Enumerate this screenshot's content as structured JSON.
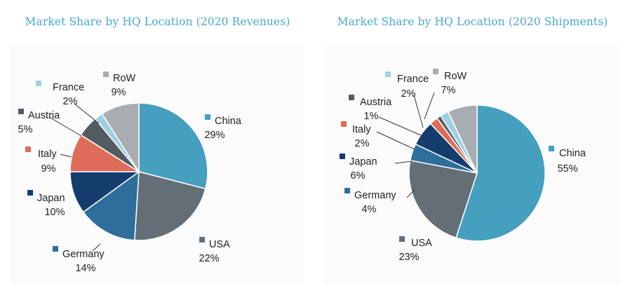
{
  "chart_data": [
    {
      "type": "pie",
      "title": "Market Share by HQ Location (2020 Revenues)",
      "unit": "%",
      "slices": [
        {
          "name": "China",
          "value": 29,
          "label": "29%",
          "color": "#459fbe"
        },
        {
          "name": "USA",
          "value": 22,
          "label": "22%",
          "color": "#646e76"
        },
        {
          "name": "Germany",
          "value": 14,
          "label": "14%",
          "color": "#2e6e9b"
        },
        {
          "name": "Japan",
          "value": 10,
          "label": "10%",
          "color": "#143d6e"
        },
        {
          "name": "Italy",
          "value": 9,
          "label": "9%",
          "color": "#df6c5a"
        },
        {
          "name": "Austria",
          "value": 5,
          "label": "5%",
          "color": "#535b60"
        },
        {
          "name": "France",
          "value": 2,
          "label": "2%",
          "color": "#9ed0e2"
        },
        {
          "name": "RoW",
          "value": 9,
          "label": "9%",
          "color": "#a9acb0"
        }
      ]
    },
    {
      "type": "pie",
      "title": "Market Share by HQ Location (2020 Shipments)",
      "unit": "%",
      "slices": [
        {
          "name": "China",
          "value": 55,
          "label": "55%",
          "color": "#459fbe"
        },
        {
          "name": "USA",
          "value": 23,
          "label": "23%",
          "color": "#646e76"
        },
        {
          "name": "Germany",
          "value": 4,
          "label": "4%",
          "color": "#2e6e9b"
        },
        {
          "name": "Japan",
          "value": 6,
          "label": "6%",
          "color": "#143d6e"
        },
        {
          "name": "Italy",
          "value": 2,
          "label": "2%",
          "color": "#df6c5a"
        },
        {
          "name": "Austria",
          "value": 1,
          "label": "1%",
          "color": "#535b60"
        },
        {
          "name": "France",
          "value": 2,
          "label": "2%",
          "color": "#9ed0e2"
        },
        {
          "name": "RoW",
          "value": 7,
          "label": "7%",
          "color": "#a9acb0"
        }
      ]
    }
  ]
}
